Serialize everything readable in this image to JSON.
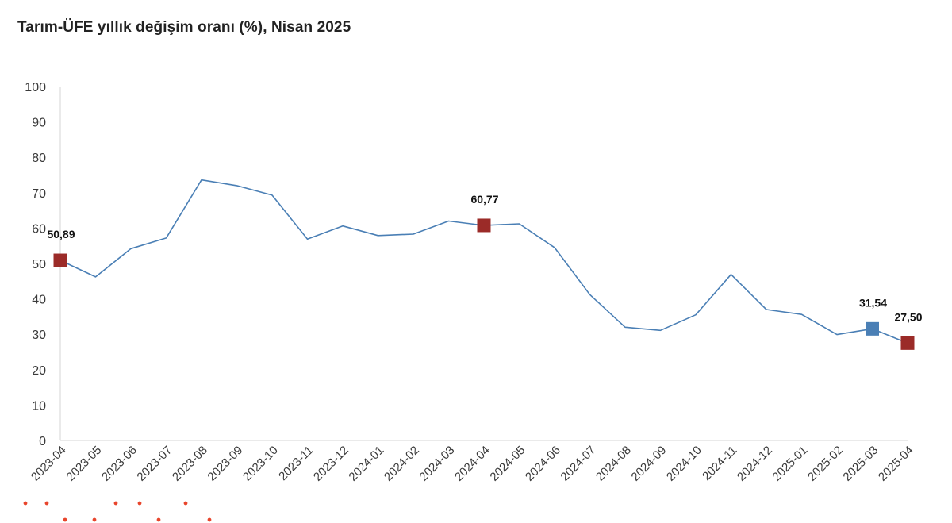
{
  "title": "Tarım-ÜFE yıllık değişim oranı (%), Nisan 2025",
  "chart_data": {
    "type": "line",
    "title": "Tarım-ÜFE yıllık değişim oranı (%), Nisan 2025",
    "xlabel": "",
    "ylabel": "",
    "ylim": [
      0,
      100
    ],
    "yticks": [
      0,
      10,
      20,
      30,
      40,
      50,
      60,
      70,
      80,
      90,
      100
    ],
    "grid": false,
    "categories": [
      "2023-04",
      "2023-05",
      "2023-06",
      "2023-07",
      "2023-08",
      "2023-09",
      "2023-10",
      "2023-11",
      "2023-12",
      "2024-01",
      "2024-02",
      "2024-03",
      "2024-04",
      "2024-05",
      "2024-06",
      "2024-07",
      "2024-08",
      "2024-09",
      "2024-10",
      "2024-11",
      "2024-12",
      "2025-01",
      "2025-02",
      "2025-03",
      "2025-04"
    ],
    "series": [
      {
        "color": "#4a7fb5",
        "values": [
          50.89,
          46.2,
          54.2,
          57.2,
          73.6,
          72.0,
          69.3,
          56.9,
          60.6,
          57.9,
          58.3,
          62.0,
          60.77,
          61.2,
          54.5,
          41.2,
          32.0,
          31.1,
          35.5,
          46.9,
          37.0,
          35.6,
          29.9,
          31.54,
          27.5
        ]
      }
    ],
    "highlighted_points": [
      {
        "index": 0,
        "label": "50,89",
        "color": "#9b2b28"
      },
      {
        "index": 12,
        "label": "60,77",
        "color": "#9b2b28"
      },
      {
        "index": 23,
        "label": "31,54",
        "color": "#4a7fb5"
      },
      {
        "index": 24,
        "label": "27,50",
        "color": "#9b2b28"
      }
    ]
  },
  "decoration": {
    "dot_color": "#e8452c"
  }
}
